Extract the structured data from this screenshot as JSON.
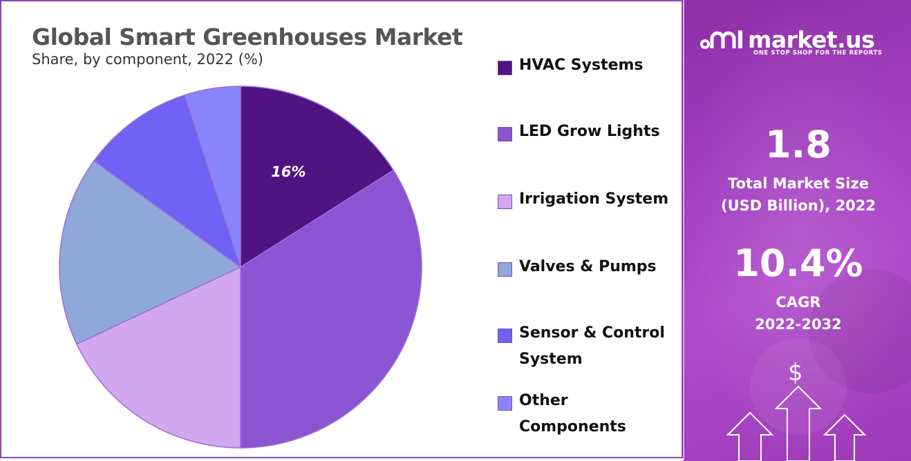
{
  "header": {
    "title": "Global Smart Greenhouses Market",
    "subtitle": "Share, by component, 2022 (%)"
  },
  "chart_data": {
    "type": "pie",
    "title": "Global Smart Greenhouses Market",
    "subtitle": "Share, by component, 2022 (%)",
    "categories": [
      "HVAC Systems",
      "LED Grow Lights",
      "Irrigation System",
      "Valves & Pumps",
      "Sensor & Control System",
      "Other Components"
    ],
    "values": [
      16,
      34,
      18,
      17,
      10,
      5
    ],
    "data_labels": [
      "16%",
      "",
      "",
      "",
      "",
      ""
    ],
    "colors": [
      "#4f1482",
      "#8b54d3",
      "#d1a8f0",
      "#8fa7d9",
      "#6f62f5",
      "#8a84fb"
    ],
    "legend_position": "right"
  },
  "legend": {
    "items": [
      {
        "label": "HVAC Systems",
        "color": "#4f1482"
      },
      {
        "label": "LED Grow Lights",
        "color": "#8b54d3"
      },
      {
        "label": "Irrigation System",
        "color": "#d1a8f0"
      },
      {
        "label": "Valves & Pumps",
        "color": "#8fa7d9"
      },
      {
        "label": "Sensor & Control System",
        "color": "#6f62f5"
      },
      {
        "label": "Other Components",
        "color": "#8a84fb"
      }
    ]
  },
  "sidebar": {
    "brand": "market.us",
    "tagline": "ONE STOP SHOP FOR THE REPORTS",
    "logo_icon": "market-us-logo-icon",
    "market_size_value": "1.8",
    "market_size_label_line1": "Total Market Size",
    "market_size_label_line2": "(USD Billion), 2022",
    "cagr_value": "10.4%",
    "cagr_label_line1": "CAGR",
    "cagr_label_line2": "2022-2032",
    "dollar_symbol": "$",
    "decoration_icon": "growth-arrows-icon"
  }
}
